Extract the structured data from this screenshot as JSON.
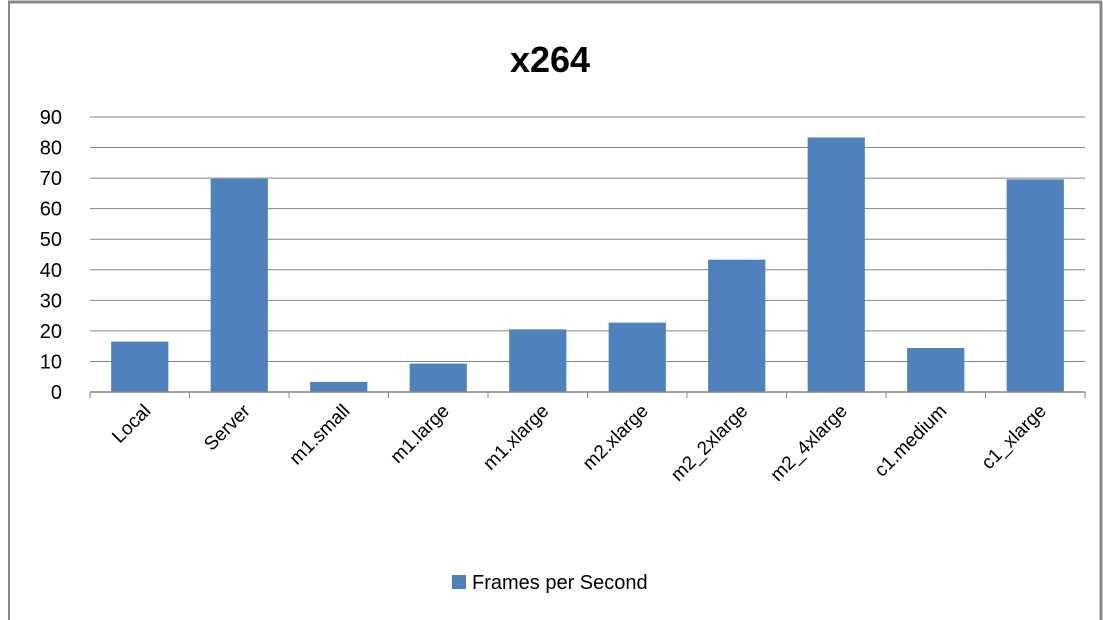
{
  "chart_data": {
    "type": "bar",
    "title": "x264",
    "xlabel": "",
    "ylabel": "",
    "categories": [
      "Local",
      "Server",
      "m1.small",
      "m1.large",
      "m1.xlarge",
      "m2.xlarge",
      "m2_2xlarge",
      "m2_4xlarge",
      "c1.medium",
      "c1_xlarge"
    ],
    "series": [
      {
        "name": "Frames per Second",
        "values": [
          16.5,
          69.8,
          3.3,
          9.3,
          20.5,
          22.7,
          43.3,
          83.3,
          14.4,
          69.6
        ]
      }
    ],
    "ylim": [
      0,
      90
    ],
    "yticks": [
      "0",
      "10",
      "20",
      "30",
      "40",
      "50",
      "60",
      "70",
      "80",
      "90"
    ],
    "grid": true,
    "legend_position": "bottom",
    "colors": {
      "bar": "#4f81bd",
      "grid": "#868686",
      "border": "#888888"
    }
  }
}
